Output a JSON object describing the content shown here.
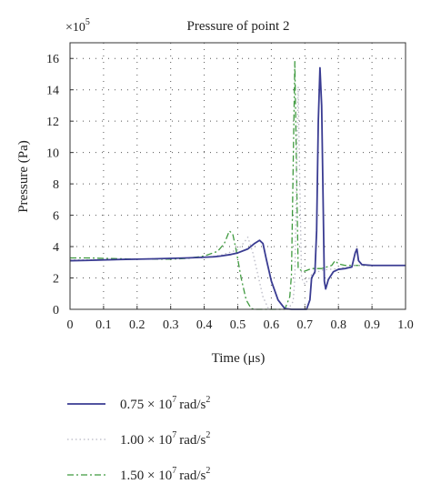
{
  "chart_data": {
    "type": "line",
    "title": "Pressure of point 2",
    "xlabel": "Time (μs)",
    "ylabel": "Pressure (Pa)",
    "y_multiplier": {
      "base": "×10",
      "exponent": "5"
    },
    "xlim": [
      0,
      1.0
    ],
    "ylim": [
      0,
      17
    ],
    "x_ticks": [
      0,
      0.1,
      0.2,
      0.3,
      0.4,
      0.5,
      0.6,
      0.7,
      0.8,
      0.9,
      1.0
    ],
    "x_tick_labels": [
      "0",
      "0.1",
      "0.2",
      "0.3",
      "0.4",
      "0.5",
      "0.6",
      "0.7",
      "0.8",
      "0.9",
      "1.0"
    ],
    "y_ticks": [
      0,
      2,
      4,
      6,
      8,
      10,
      12,
      14,
      16
    ],
    "y_tick_labels": [
      "0",
      "2",
      "4",
      "6",
      "8",
      "10",
      "12",
      "14",
      "16"
    ],
    "grid": true,
    "legend_position": "bottom",
    "series": [
      {
        "name": "0.75 × 10^7 rad/s^2",
        "legend": {
          "coef": "0.75 × 10",
          "exp": "7",
          "unit": "rad/s",
          "unit_exp": "2"
        },
        "color": "#3a3c92",
        "style": "solid",
        "points": [
          [
            0,
            3.1
          ],
          [
            0.05,
            3.12
          ],
          [
            0.1,
            3.15
          ],
          [
            0.15,
            3.18
          ],
          [
            0.2,
            3.2
          ],
          [
            0.25,
            3.22
          ],
          [
            0.3,
            3.25
          ],
          [
            0.35,
            3.28
          ],
          [
            0.4,
            3.32
          ],
          [
            0.43,
            3.35
          ],
          [
            0.45,
            3.4
          ],
          [
            0.48,
            3.5
          ],
          [
            0.5,
            3.6
          ],
          [
            0.53,
            3.85
          ],
          [
            0.55,
            4.2
          ],
          [
            0.565,
            4.4
          ],
          [
            0.575,
            4.2
          ],
          [
            0.585,
            3.2
          ],
          [
            0.6,
            1.8
          ],
          [
            0.62,
            0.6
          ],
          [
            0.64,
            0.05
          ],
          [
            0.66,
            0
          ],
          [
            0.69,
            0
          ],
          [
            0.705,
            0
          ],
          [
            0.715,
            0.6
          ],
          [
            0.72,
            2.0
          ],
          [
            0.73,
            2.4
          ],
          [
            0.735,
            5
          ],
          [
            0.74,
            12
          ],
          [
            0.745,
            15.4
          ],
          [
            0.75,
            13
          ],
          [
            0.755,
            6
          ],
          [
            0.758,
            1.8
          ],
          [
            0.762,
            1.3
          ],
          [
            0.77,
            1.9
          ],
          [
            0.785,
            2.4
          ],
          [
            0.8,
            2.55
          ],
          [
            0.82,
            2.6
          ],
          [
            0.84,
            2.7
          ],
          [
            0.85,
            3.6
          ],
          [
            0.855,
            3.85
          ],
          [
            0.86,
            3.1
          ],
          [
            0.87,
            2.85
          ],
          [
            0.9,
            2.8
          ],
          [
            0.95,
            2.8
          ],
          [
            1.0,
            2.8
          ]
        ]
      },
      {
        "name": "1.00 × 10^7 rad/s^2",
        "legend": {
          "coef": "1.00 × 10",
          "exp": "7",
          "unit": "rad/s",
          "unit_exp": "2"
        },
        "color": "#b8b8c4",
        "style": "dotted",
        "points": [
          [
            0,
            3.15
          ],
          [
            0.1,
            3.17
          ],
          [
            0.2,
            3.2
          ],
          [
            0.3,
            3.25
          ],
          [
            0.4,
            3.3
          ],
          [
            0.45,
            3.45
          ],
          [
            0.5,
            3.8
          ],
          [
            0.52,
            4.3
          ],
          [
            0.53,
            4.6
          ],
          [
            0.545,
            3.6
          ],
          [
            0.56,
            2.2
          ],
          [
            0.575,
            0.8
          ],
          [
            0.59,
            0.1
          ],
          [
            0.6,
            0
          ],
          [
            0.65,
            0
          ],
          [
            0.665,
            0.5
          ],
          [
            0.67,
            2.0
          ],
          [
            0.675,
            8
          ],
          [
            0.68,
            14.2
          ],
          [
            0.685,
            8
          ],
          [
            0.69,
            2.0
          ],
          [
            0.7,
            1.6
          ],
          [
            0.72,
            2.2
          ],
          [
            0.75,
            2.5
          ],
          [
            0.8,
            2.6
          ],
          [
            0.83,
            2.7
          ],
          [
            0.85,
            2.8
          ],
          [
            0.9,
            2.8
          ],
          [
            1.0,
            2.8
          ]
        ]
      },
      {
        "name": "1.50 × 10^7 rad/s^2",
        "legend": {
          "coef": "1.50 × 10",
          "exp": "7",
          "unit": "rad/s",
          "unit_exp": "2"
        },
        "color": "#3f9a3f",
        "style": "dashdot",
        "points": [
          [
            0,
            3.28
          ],
          [
            0.05,
            3.28
          ],
          [
            0.1,
            3.25
          ],
          [
            0.2,
            3.2
          ],
          [
            0.3,
            3.2
          ],
          [
            0.35,
            3.25
          ],
          [
            0.4,
            3.4
          ],
          [
            0.44,
            3.7
          ],
          [
            0.46,
            4.2
          ],
          [
            0.475,
            5.0
          ],
          [
            0.485,
            4.8
          ],
          [
            0.495,
            3.8
          ],
          [
            0.51,
            2.0
          ],
          [
            0.525,
            0.6
          ],
          [
            0.54,
            0.05
          ],
          [
            0.55,
            0
          ],
          [
            0.64,
            0
          ],
          [
            0.655,
            0.8
          ],
          [
            0.66,
            2.2
          ],
          [
            0.665,
            9
          ],
          [
            0.67,
            15.8
          ],
          [
            0.675,
            9
          ],
          [
            0.68,
            2.6
          ],
          [
            0.695,
            2.4
          ],
          [
            0.72,
            2.6
          ],
          [
            0.75,
            2.6
          ],
          [
            0.78,
            2.8
          ],
          [
            0.79,
            3.1
          ],
          [
            0.8,
            2.9
          ],
          [
            0.82,
            2.8
          ],
          [
            0.85,
            2.8
          ],
          [
            0.9,
            2.8
          ],
          [
            1.0,
            2.8
          ]
        ]
      }
    ]
  }
}
